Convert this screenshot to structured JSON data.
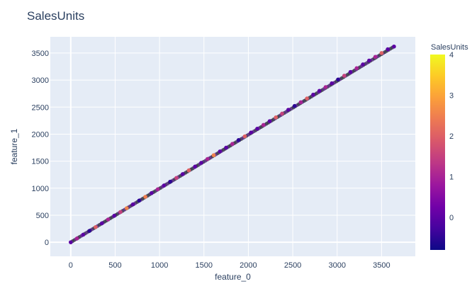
{
  "chart_data": {
    "type": "scatter",
    "title": "SalesUnits",
    "xlabel": "feature_0",
    "ylabel": "feature_1",
    "xlim": [
      -230,
      3880
    ],
    "ylim": [
      -260,
      3800
    ],
    "xticks": [
      0,
      500,
      1000,
      1500,
      2000,
      2500,
      3000,
      3500
    ],
    "yticks": [
      0,
      500,
      1000,
      1500,
      2000,
      2500,
      3000,
      3500
    ],
    "grid": true,
    "colorscale": [
      "#0d0887",
      "#46039f",
      "#7201a8",
      "#9c179e",
      "#bd3786",
      "#d8576b",
      "#ed7953",
      "#fb9f3a",
      "#fdca26",
      "#f0f921"
    ],
    "colorbar": {
      "title": "SalesUnits",
      "range": [
        -0.8,
        4
      ],
      "ticks": [
        0,
        1,
        2,
        3,
        4
      ]
    },
    "series": [
      {
        "color_by": "SalesUnits",
        "x": [
          0,
          70,
          140,
          210,
          280,
          350,
          420,
          490,
          560,
          630,
          700,
          770,
          840,
          910,
          980,
          1050,
          1120,
          1190,
          1260,
          1330,
          1400,
          1470,
          1540,
          1610,
          1680,
          1750,
          1820,
          1890,
          1960,
          2030,
          2100,
          2170,
          2240,
          2310,
          2380,
          2450,
          2520,
          2590,
          2660,
          2730,
          2800,
          2870,
          2940,
          3010,
          3080,
          3150,
          3220,
          3290,
          3360,
          3430,
          3500,
          3570,
          3640
        ],
        "y": [
          0,
          70,
          140,
          210,
          280,
          350,
          420,
          490,
          560,
          630,
          700,
          770,
          840,
          910,
          980,
          1050,
          1120,
          1190,
          1260,
          1330,
          1400,
          1470,
          1540,
          1610,
          1680,
          1750,
          1820,
          1890,
          1960,
          2030,
          2100,
          2170,
          2240,
          2310,
          2380,
          2450,
          2520,
          2590,
          2660,
          2730,
          2800,
          2870,
          2940,
          3010,
          3080,
          3150,
          3220,
          3290,
          3360,
          3430,
          3500,
          3570,
          3620
        ],
        "values": [
          0,
          1,
          0,
          -0.5,
          2,
          0,
          1,
          0,
          1.5,
          2.5,
          0,
          -0.5,
          2.5,
          0,
          1,
          0,
          -0.5,
          1.5,
          0,
          2,
          0,
          0,
          1,
          2.5,
          0,
          0,
          1,
          -0.5,
          2,
          0,
          0,
          1,
          0,
          2,
          1.5,
          0,
          -0.5,
          1,
          2,
          0,
          0,
          1,
          0,
          -0.5,
          1.5,
          0,
          1,
          0,
          0,
          1,
          2,
          0,
          0
        ]
      }
    ]
  }
}
